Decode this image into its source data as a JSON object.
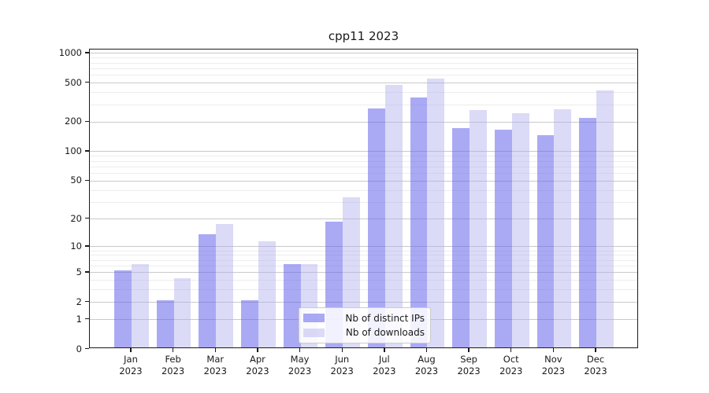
{
  "title": "cpp11 2023",
  "chart_data": {
    "type": "bar",
    "title": "cpp11 2023",
    "categories": [
      "Jan",
      "Feb",
      "Mar",
      "Apr",
      "May",
      "Jun",
      "Jul",
      "Aug",
      "Sep",
      "Oct",
      "Nov",
      "Dec"
    ],
    "category_year": "2023",
    "series": [
      {
        "name": "Nb of distinct IPs",
        "color": "rgba(100,100,235,0.55)",
        "values": [
          5,
          2,
          13,
          2,
          6,
          18,
          265,
          340,
          165,
          160,
          140,
          210
        ]
      },
      {
        "name": "Nb of downloads",
        "color": "rgba(175,175,237,0.45)",
        "values": [
          6,
          4,
          17,
          11,
          6,
          32,
          460,
          530,
          255,
          235,
          260,
          400
        ]
      }
    ],
    "xlabel": "",
    "ylabel": "",
    "y_scale": "log1p",
    "y_ticks": [
      0,
      1,
      2,
      5,
      10,
      20,
      50,
      100,
      200,
      500,
      1000
    ],
    "y_minor_ticks": [
      3,
      4,
      6,
      7,
      8,
      9,
      30,
      40,
      60,
      70,
      80,
      90,
      300,
      400,
      600,
      700,
      800,
      900
    ],
    "ylim": [
      0,
      1100
    ],
    "grid": true,
    "legend_position": "lower center",
    "colors": {
      "grid_major": "#c9c9c9",
      "grid_minor": "#ededed",
      "axis_frame": "#1a1a1a",
      "text": "#1a1a1a"
    }
  }
}
